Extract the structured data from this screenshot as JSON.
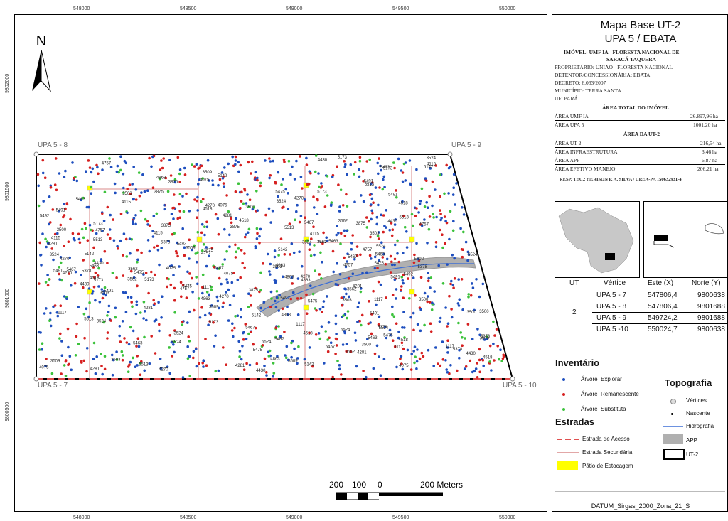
{
  "map": {
    "north_label": "N",
    "x_ticks": [
      "548000",
      "548500",
      "549000",
      "549500",
      "550000"
    ],
    "x_ticks_bottom": [
      "548000",
      "548500",
      "549000",
      "549500",
      "550000"
    ],
    "y_ticks": [
      "9802000",
      "9801500",
      "9801000",
      "9800500"
    ],
    "vertex_labels": [
      "UPA 5 - 8",
      "UPA 5 - 9",
      "UPA 5 - 7",
      "UPA 5 - 10"
    ],
    "scale_labels": [
      "200",
      "100",
      "0",
      "200 Meters"
    ],
    "colors": {
      "explorar": "#1f4fbf",
      "remanescente": "#d62020",
      "substituta": "#3cc23c",
      "app": "#b0b0b0",
      "hidrografia": "#3d6fd6",
      "patio": "#ffff00",
      "estrada_acesso": "#e05050",
      "estrada_secundaria": "#d88a8a"
    },
    "sample_tree_numbers": [
      "5467",
      "5173",
      "4863",
      "4518",
      "4270",
      "3875",
      "5491",
      "5475",
      "4757",
      "4281",
      "5142",
      "5378",
      "3562",
      "4430",
      "1117",
      "3524",
      "5524",
      "4115",
      "3509",
      "5513",
      "5463",
      "3503",
      "5492",
      "4075",
      "3500"
    ]
  },
  "panel": {
    "title1": "Mapa Base UT-2",
    "title2": "UPA 5 / EBATA",
    "imovel_line1": "IMÓVEL: UMF IA - FLORESTA NACIONAL DE",
    "imovel_line2": "SARACÁ TAQUERA",
    "proprietario": "PROPRIETÁRIO: UNIÃO - FLORESTA NACIONAL",
    "detentor": "DETENTOR/CONCESSIONÁRIA: EBATA",
    "decreto": "DECRETO: 6.063/2007",
    "municipio": "MUNICÍPIO: TERRA SANTA",
    "uf": "UF: PARÁ",
    "area_total_title": "ÁREA TOTAL DO IMÓVEL",
    "area_umf_label": "ÁREA UMF IA",
    "area_umf_value": "26.897,96 ha",
    "area_upa_label": "ÁREA UPA 5",
    "area_upa_value": "1001,20 ha",
    "area_ut_title": "ÁREA DA UT-2",
    "area_ut2_label": "ÁREA UT-2",
    "area_ut2_value": "216,54 ha",
    "area_infra_label": "ÁREA INFRAESTRUTURA",
    "area_infra_value": "3,46 ha",
    "area_app_label": "ÁREA APP",
    "area_app_value": "6,87 ha",
    "area_efetivo_label": "ÁREA EFETIVO MANEJO",
    "area_efetivo_value": "206,21 ha",
    "resp": "RESP. TEC.: HERISON P. A. SILVA / CREA-PA 150632931-4",
    "table": {
      "headers": [
        "UT",
        "Vértice",
        "Este (X)",
        "Norte (Y)"
      ],
      "ut": "2",
      "rows": [
        [
          "UPA 5 - 7",
          "547806,4",
          "9800638"
        ],
        [
          "UPA 5 - 8",
          "547806,4",
          "9801688"
        ],
        [
          "UPA 5 - 9",
          "549724,2",
          "9801688"
        ],
        [
          "UPA 5 -10",
          "550024,7",
          "9800638"
        ]
      ]
    },
    "inventario_title": "Inventário",
    "inv_explorar": "Árvore_Explorar",
    "inv_remanescente": "Árvore_Remanescente",
    "inv_substituta": "Árvore_Substituta",
    "estradas_title": "Estradas",
    "estrada_acesso": "Estrada de Acesso",
    "estrada_secundaria": "Estrada Secundária",
    "patio": "Pátio de Estocagem",
    "topografia_title": "Topografia",
    "topo_vertices": "Vértices",
    "topo_nascente": "Nascente",
    "topo_hidrografia": "Hidrografia",
    "topo_app": "APP",
    "topo_ut2": "UT-2",
    "datum": "DATUM_Sirgas_2000_Zona_21_S"
  }
}
